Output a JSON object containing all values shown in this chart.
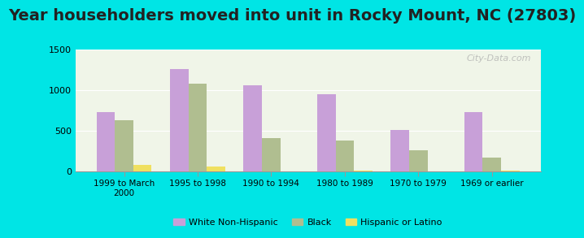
{
  "title": "Year householders moved into unit in Rocky Mount, NC (27803)",
  "categories": [
    "1999 to March\n2000",
    "1995 to 1998",
    "1990 to 1994",
    "1980 to 1989",
    "1970 to 1979",
    "1969 or earlier"
  ],
  "white_non_hispanic": [
    730,
    1255,
    1055,
    950,
    505,
    730
  ],
  "black": [
    630,
    1075,
    405,
    380,
    255,
    170
  ],
  "hispanic_or_latino": [
    75,
    55,
    0,
    10,
    0,
    10
  ],
  "white_color": "#c8a0d8",
  "black_color": "#b0be90",
  "hispanic_color": "#f0e060",
  "background_outer": "#00e5e5",
  "background_chart": "#f0f5e8",
  "ylim": [
    0,
    1500
  ],
  "yticks": [
    0,
    500,
    1000,
    1500
  ],
  "bar_width": 0.25,
  "title_fontsize": 14,
  "watermark": "City-Data.com"
}
